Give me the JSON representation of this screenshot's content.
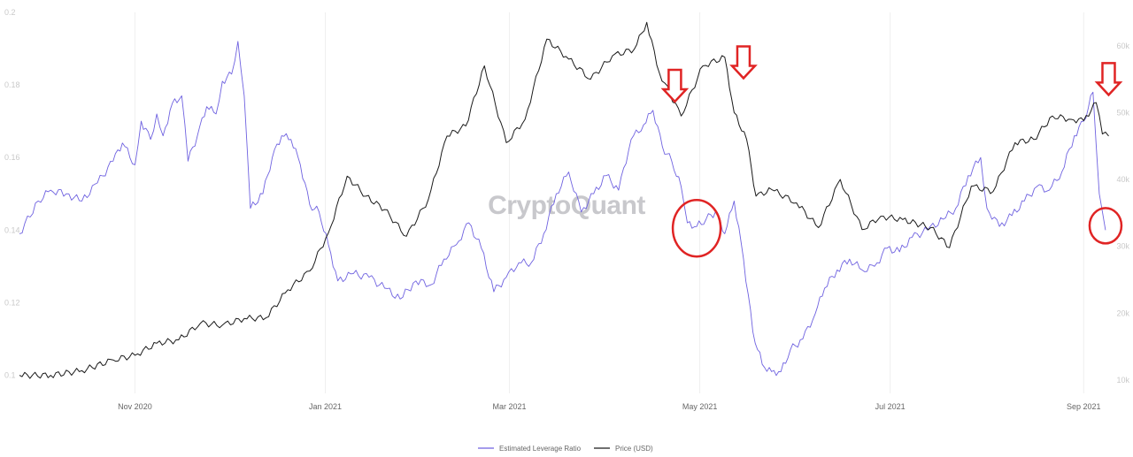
{
  "chart_data": {
    "type": "line",
    "watermark": "CryptoQuant",
    "grid": "vertical",
    "legend_placement": "bottom-center",
    "x_tick_labels": [
      "Nov 2020",
      "Jan 2021",
      "Mar 2021",
      "May 2021",
      "Jul 2021",
      "Sep 2021"
    ],
    "x_tick_dates": [
      "2020-11-01",
      "2021-01-01",
      "2021-03-01",
      "2021-05-01",
      "2021-07-01",
      "2021-09-01"
    ],
    "x_range": [
      "2020-09-25",
      "2021-09-10"
    ],
    "left_axis": {
      "ylim": [
        0.095,
        0.2
      ],
      "tick_values": [
        0.1,
        0.12,
        0.14,
        0.16,
        0.18,
        0.2
      ],
      "tick_labels": [
        "0.1",
        "0.12",
        "0.14",
        "0.16",
        "0.18",
        "0.2"
      ]
    },
    "right_axis": {
      "ylim": [
        8000,
        65000
      ],
      "tick_values": [
        10000,
        20000,
        30000,
        40000,
        50000,
        60000
      ],
      "tick_labels": [
        "10k",
        "20k",
        "30k",
        "40k",
        "50k",
        "60k"
      ]
    },
    "series": [
      {
        "name": "Estimated Leverage Ratio",
        "axis": "left",
        "color": "#6f62e0",
        "points": [
          [
            "2020-09-25",
            0.139
          ],
          [
            "2020-10-01",
            0.148
          ],
          [
            "2020-10-05",
            0.151
          ],
          [
            "2020-10-10",
            0.15
          ],
          [
            "2020-10-15",
            0.148
          ],
          [
            "2020-10-20",
            0.153
          ],
          [
            "2020-10-25",
            0.159
          ],
          [
            "2020-10-28",
            0.164
          ],
          [
            "2020-11-01",
            0.158
          ],
          [
            "2020-11-03",
            0.17
          ],
          [
            "2020-11-06",
            0.165
          ],
          [
            "2020-11-08",
            0.172
          ],
          [
            "2020-11-10",
            0.166
          ],
          [
            "2020-11-13",
            0.175
          ],
          [
            "2020-11-16",
            0.177
          ],
          [
            "2020-11-18",
            0.159
          ],
          [
            "2020-11-21",
            0.166
          ],
          [
            "2020-11-24",
            0.174
          ],
          [
            "2020-11-27",
            0.172
          ],
          [
            "2020-11-29",
            0.181
          ],
          [
            "2020-12-02",
            0.183
          ],
          [
            "2020-12-04",
            0.192
          ],
          [
            "2020-12-06",
            0.177
          ],
          [
            "2020-12-08",
            0.146
          ],
          [
            "2020-12-12",
            0.15
          ],
          [
            "2020-12-15",
            0.16
          ],
          [
            "2020-12-18",
            0.166
          ],
          [
            "2020-12-21",
            0.165
          ],
          [
            "2020-12-24",
            0.158
          ],
          [
            "2020-12-27",
            0.147
          ],
          [
            "2020-12-30",
            0.145
          ],
          [
            "2021-01-02",
            0.136
          ],
          [
            "2021-01-05",
            0.126
          ],
          [
            "2021-01-10",
            0.128
          ],
          [
            "2021-01-15",
            0.127
          ],
          [
            "2021-01-20",
            0.124
          ],
          [
            "2021-01-25",
            0.121
          ],
          [
            "2021-01-30",
            0.126
          ],
          [
            "2021-02-04",
            0.125
          ],
          [
            "2021-02-08",
            0.132
          ],
          [
            "2021-02-12",
            0.136
          ],
          [
            "2021-02-16",
            0.142
          ],
          [
            "2021-02-20",
            0.135
          ],
          [
            "2021-02-24",
            0.123
          ],
          [
            "2021-02-28",
            0.127
          ],
          [
            "2021-03-04",
            0.131
          ],
          [
            "2021-03-08",
            0.131
          ],
          [
            "2021-03-12",
            0.139
          ],
          [
            "2021-03-16",
            0.15
          ],
          [
            "2021-03-20",
            0.156
          ],
          [
            "2021-03-24",
            0.145
          ],
          [
            "2021-03-28",
            0.15
          ],
          [
            "2021-04-01",
            0.155
          ],
          [
            "2021-04-05",
            0.151
          ],
          [
            "2021-04-09",
            0.165
          ],
          [
            "2021-04-13",
            0.169
          ],
          [
            "2021-04-16",
            0.173
          ],
          [
            "2021-04-19",
            0.163
          ],
          [
            "2021-04-22",
            0.159
          ],
          [
            "2021-04-25",
            0.152
          ],
          [
            "2021-04-27",
            0.142
          ],
          [
            "2021-04-30",
            0.141
          ],
          [
            "2021-05-03",
            0.143
          ],
          [
            "2021-05-06",
            0.145
          ],
          [
            "2021-05-09",
            0.139
          ],
          [
            "2021-05-12",
            0.148
          ],
          [
            "2021-05-15",
            0.132
          ],
          [
            "2021-05-18",
            0.112
          ],
          [
            "2021-05-21",
            0.103
          ],
          [
            "2021-05-24",
            0.101
          ],
          [
            "2021-05-27",
            0.101
          ],
          [
            "2021-05-30",
            0.107
          ],
          [
            "2021-06-03",
            0.11
          ],
          [
            "2021-06-07",
            0.117
          ],
          [
            "2021-06-10",
            0.124
          ],
          [
            "2021-06-14",
            0.129
          ],
          [
            "2021-06-18",
            0.132
          ],
          [
            "2021-06-22",
            0.129
          ],
          [
            "2021-06-26",
            0.13
          ],
          [
            "2021-06-30",
            0.135
          ],
          [
            "2021-07-04",
            0.134
          ],
          [
            "2021-07-08",
            0.138
          ],
          [
            "2021-07-13",
            0.14
          ],
          [
            "2021-07-18",
            0.143
          ],
          [
            "2021-07-22",
            0.146
          ],
          [
            "2021-07-26",
            0.155
          ],
          [
            "2021-07-30",
            0.16
          ],
          [
            "2021-08-01",
            0.146
          ],
          [
            "2021-08-05",
            0.141
          ],
          [
            "2021-08-09",
            0.144
          ],
          [
            "2021-08-13",
            0.148
          ],
          [
            "2021-08-17",
            0.152
          ],
          [
            "2021-08-21",
            0.151
          ],
          [
            "2021-08-25",
            0.156
          ],
          [
            "2021-08-29",
            0.166
          ],
          [
            "2021-09-01",
            0.17
          ],
          [
            "2021-09-04",
            0.178
          ],
          [
            "2021-09-06",
            0.15
          ],
          [
            "2021-09-08",
            0.14
          ]
        ]
      },
      {
        "name": "Price (USD)",
        "axis": "right",
        "color": "#1a1a1a",
        "points": [
          [
            "2020-09-25",
            10700
          ],
          [
            "2020-10-05",
            10700
          ],
          [
            "2020-10-15",
            11400
          ],
          [
            "2020-10-25",
            13000
          ],
          [
            "2020-11-01",
            13700
          ],
          [
            "2020-11-08",
            15500
          ],
          [
            "2020-11-15",
            16000
          ],
          [
            "2020-11-22",
            18500
          ],
          [
            "2020-11-29",
            18200
          ],
          [
            "2020-12-06",
            19200
          ],
          [
            "2020-12-13",
            19300
          ],
          [
            "2020-12-20",
            23500
          ],
          [
            "2020-12-27",
            26300
          ],
          [
            "2021-01-02",
            32000
          ],
          [
            "2021-01-08",
            40500
          ],
          [
            "2021-01-14",
            37500
          ],
          [
            "2021-01-20",
            35500
          ],
          [
            "2021-01-27",
            31500
          ],
          [
            "2021-02-03",
            37000
          ],
          [
            "2021-02-09",
            46500
          ],
          [
            "2021-02-15",
            48000
          ],
          [
            "2021-02-21",
            57000
          ],
          [
            "2021-02-28",
            45500
          ],
          [
            "2021-03-06",
            49000
          ],
          [
            "2021-03-13",
            61000
          ],
          [
            "2021-03-20",
            58000
          ],
          [
            "2021-03-27",
            55000
          ],
          [
            "2021-04-03",
            58500
          ],
          [
            "2021-04-10",
            59500
          ],
          [
            "2021-04-14",
            63500
          ],
          [
            "2021-04-18",
            56000
          ],
          [
            "2021-04-25",
            49500
          ],
          [
            "2021-05-02",
            57000
          ],
          [
            "2021-05-09",
            58300
          ],
          [
            "2021-05-12",
            50000
          ],
          [
            "2021-05-16",
            46000
          ],
          [
            "2021-05-19",
            37500
          ],
          [
            "2021-05-24",
            38500
          ],
          [
            "2021-06-01",
            36500
          ],
          [
            "2021-06-08",
            32800
          ],
          [
            "2021-06-15",
            40000
          ],
          [
            "2021-06-22",
            32500
          ],
          [
            "2021-06-28",
            34500
          ],
          [
            "2021-07-05",
            34000
          ],
          [
            "2021-07-14",
            32800
          ],
          [
            "2021-07-20",
            29800
          ],
          [
            "2021-07-27",
            39000
          ],
          [
            "2021-08-03",
            38200
          ],
          [
            "2021-08-10",
            45500
          ],
          [
            "2021-08-16",
            46000
          ],
          [
            "2021-08-22",
            49500
          ],
          [
            "2021-08-28",
            49000
          ],
          [
            "2021-09-01",
            48800
          ],
          [
            "2021-09-05",
            51500
          ],
          [
            "2021-09-07",
            46800
          ],
          [
            "2021-09-09",
            46500
          ]
        ]
      }
    ],
    "annotations": [
      {
        "type": "down-arrow",
        "color": "#e02424",
        "date": "2021-04-23",
        "price": 53500,
        "axis": "right"
      },
      {
        "type": "down-arrow",
        "color": "#e02424",
        "date": "2021-05-15",
        "price": 57000,
        "axis": "right"
      },
      {
        "type": "down-arrow",
        "color": "#e02424",
        "date": "2021-09-09",
        "price": 54500,
        "axis": "right"
      },
      {
        "type": "circle",
        "color": "#e02424",
        "date": "2021-04-30",
        "value": 0.1405,
        "axis": "left"
      },
      {
        "type": "circle",
        "color": "#e02424",
        "date": "2021-09-08",
        "value": 0.1412,
        "axis": "left"
      }
    ]
  }
}
